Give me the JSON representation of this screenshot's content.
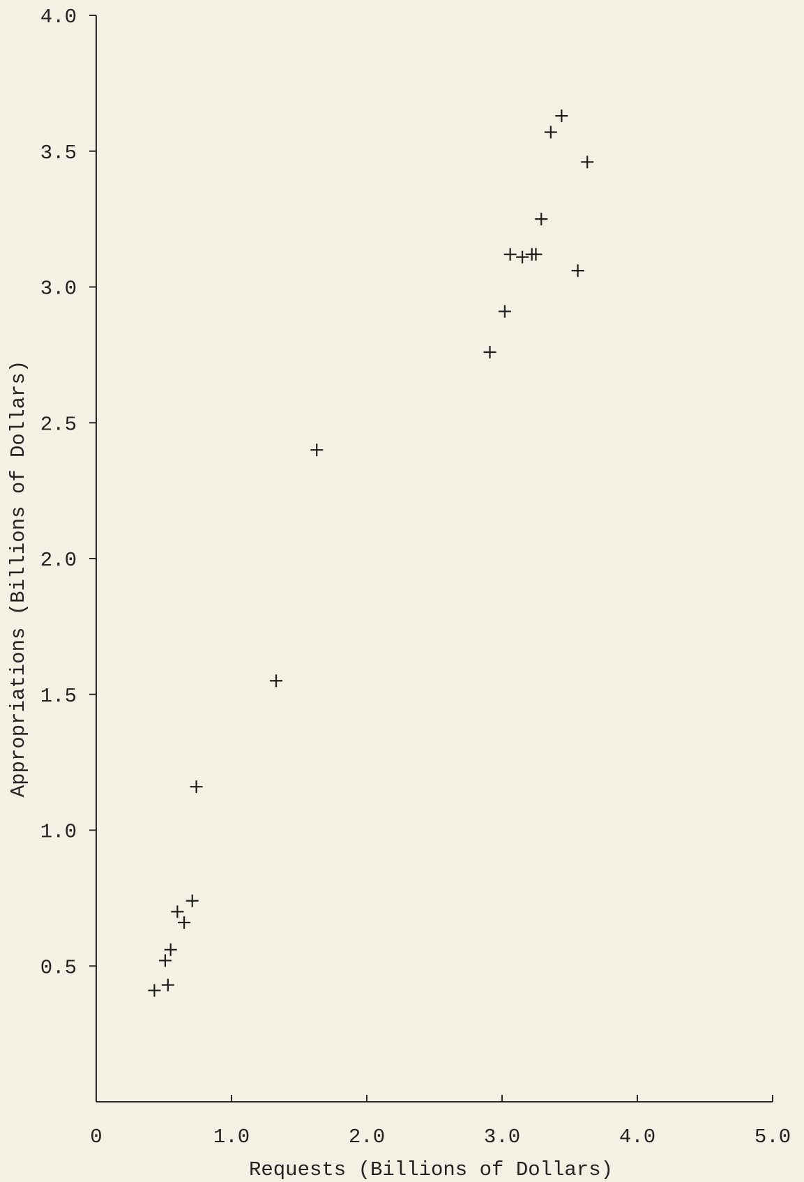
{
  "chart_data": {
    "type": "scatter",
    "xlabel": "Requests (Billions of Dollars)",
    "ylabel": "Appropriations (Billions of Dollars)",
    "xlim": [
      0,
      5.0
    ],
    "ylim": [
      0,
      4.0
    ],
    "x_tick_labels": [
      {
        "value": 0,
        "label": "0"
      },
      {
        "value": 1.0,
        "label": "1.0"
      },
      {
        "value": 2.0,
        "label": "2.0"
      },
      {
        "value": 3.0,
        "label": "3.0"
      },
      {
        "value": 4.0,
        "label": "4.0"
      },
      {
        "value": 5.0,
        "label": "5.0"
      }
    ],
    "y_tick_labels": [
      {
        "value": 0.5,
        "label": "0.5"
      },
      {
        "value": 1.0,
        "label": "1.0"
      },
      {
        "value": 1.5,
        "label": "1.5"
      },
      {
        "value": 2.0,
        "label": "2.0"
      },
      {
        "value": 2.5,
        "label": "2.5"
      },
      {
        "value": 3.0,
        "label": "3.0"
      },
      {
        "value": 3.5,
        "label": "3.5"
      },
      {
        "value": 4.0,
        "label": "4.0"
      }
    ],
    "marker": "+",
    "grid": false,
    "points": [
      {
        "x": 0.43,
        "y": 0.41
      },
      {
        "x": 0.53,
        "y": 0.43
      },
      {
        "x": 0.51,
        "y": 0.52
      },
      {
        "x": 0.55,
        "y": 0.56
      },
      {
        "x": 0.6,
        "y": 0.7
      },
      {
        "x": 0.65,
        "y": 0.66
      },
      {
        "x": 0.71,
        "y": 0.74
      },
      {
        "x": 0.74,
        "y": 1.16
      },
      {
        "x": 1.33,
        "y": 1.55
      },
      {
        "x": 1.63,
        "y": 2.4
      },
      {
        "x": 2.91,
        "y": 2.76
      },
      {
        "x": 3.02,
        "y": 2.91
      },
      {
        "x": 3.06,
        "y": 3.12
      },
      {
        "x": 3.15,
        "y": 3.11
      },
      {
        "x": 3.22,
        "y": 3.12
      },
      {
        "x": 3.25,
        "y": 3.12
      },
      {
        "x": 3.29,
        "y": 3.25
      },
      {
        "x": 3.36,
        "y": 3.57
      },
      {
        "x": 3.44,
        "y": 3.63
      },
      {
        "x": 3.56,
        "y": 3.06
      },
      {
        "x": 3.63,
        "y": 3.46
      }
    ]
  }
}
